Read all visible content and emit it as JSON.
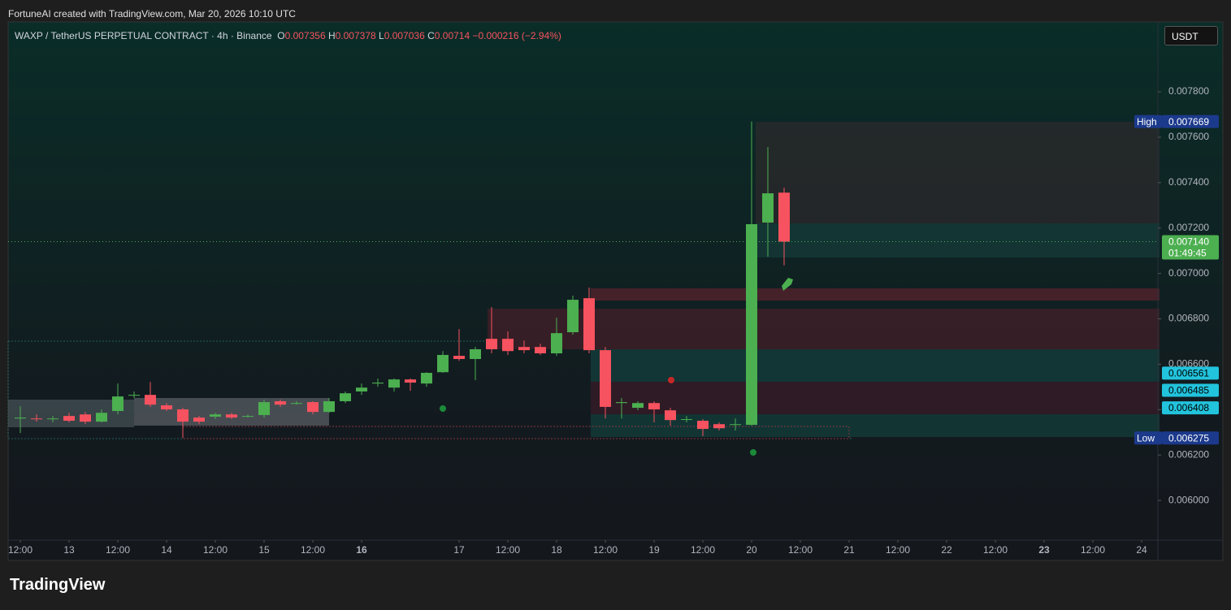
{
  "watermark": "FortuneAI created with TradingView.com, Mar 20, 2026 10:10 UTC",
  "logo": "TradingView",
  "currency_button": "USDT",
  "chart_data": {
    "type": "candlestick",
    "symbol": "WAXP / TetherUS PERPETUAL CONTRACT · 4h · Binance",
    "change": "−0.000216 (−2.94%)",
    "up_color": "#4caf50",
    "down_color": "#f7525f",
    "open": [
      0.006361,
      0.006361,
      0.006358,
      0.006372,
      0.006379,
      0.006347,
      0.006394,
      0.006462,
      0.006465,
      0.006419,
      0.006401,
      0.006365,
      0.006369,
      0.006379,
      0.006372,
      0.006376,
      0.006437,
      0.006429,
      0.006433,
      0.00639,
      0.006437,
      0.00648,
      0.006515,
      0.006497,
      0.006533,
      0.006515,
      0.006565,
      0.006637,
      0.006623,
      0.006712,
      0.006712,
      0.006676,
      0.006676,
      0.006648,
      0.006741,
      0.006891,
      0.006662,
      0.006429,
      0.006408,
      0.006429,
      0.006397,
      0.006358,
      0.006351,
      0.006336,
      0.006333,
      0.006333,
      0.007224,
      0.007356
    ],
    "high": [
      0.006415,
      0.006379,
      0.006372,
      0.006386,
      0.00639,
      0.006401,
      0.006515,
      0.00648,
      0.006522,
      0.006429,
      0.006408,
      0.006372,
      0.006386,
      0.006386,
      0.006379,
      0.006444,
      0.006444,
      0.006437,
      0.006437,
      0.006451,
      0.00648,
      0.006515,
      0.006537,
      0.006537,
      0.006537,
      0.006565,
      0.006658,
      0.006755,
      0.006676,
      0.006852,
      0.006744,
      0.006705,
      0.00669,
      0.006805,
      0.006902,
      0.006938,
      0.006676,
      0.006451,
      0.006437,
      0.006437,
      0.006408,
      0.006372,
      0.006358,
      0.006344,
      0.006361,
      0.007669,
      0.007557,
      0.007378
    ],
    "low": [
      0.006297,
      0.006347,
      0.006344,
      0.006344,
      0.006336,
      0.006344,
      0.006379,
      0.006451,
      0.006412,
      0.006394,
      0.006275,
      0.006336,
      0.006358,
      0.006358,
      0.006365,
      0.006365,
      0.006412,
      0.006422,
      0.006379,
      0.006386,
      0.006429,
      0.006465,
      0.006501,
      0.00648,
      0.006483,
      0.006501,
      0.006562,
      0.006615,
      0.00653,
      0.006648,
      0.006641,
      0.006648,
      0.006641,
      0.006637,
      0.00673,
      0.006648,
      0.006361,
      0.006361,
      0.006397,
      0.006344,
      0.006329,
      0.006344,
      0.006283,
      0.006308,
      0.006308,
      0.006329,
      0.007074,
      0.007036
    ],
    "close": [
      0.006365,
      0.006358,
      0.006361,
      0.006351,
      0.006347,
      0.006386,
      0.006458,
      0.006465,
      0.006422,
      0.006401,
      0.006347,
      0.006347,
      0.006379,
      0.006365,
      0.006372,
      0.006433,
      0.006422,
      0.006429,
      0.00639,
      0.006437,
      0.006472,
      0.006497,
      0.006519,
      0.006533,
      0.006519,
      0.006562,
      0.006641,
      0.006623,
      0.006666,
      0.006666,
      0.006658,
      0.006662,
      0.006648,
      0.006737,
      0.006884,
      0.006662,
      0.006412,
      0.006433,
      0.006429,
      0.006401,
      0.006354,
      0.006358,
      0.006315,
      0.006318,
      0.006336,
      0.007217,
      0.007353,
      0.00714
    ],
    "xlim": [
      -0.75,
      70
    ],
    "xticks": [
      {
        "value": 0,
        "label": "12:00"
      },
      {
        "value": 3,
        "label": "13"
      },
      {
        "value": 6,
        "label": "12:00"
      },
      {
        "value": 9,
        "label": "14"
      },
      {
        "value": 12,
        "label": "12:00"
      },
      {
        "value": 15,
        "label": "15"
      },
      {
        "value": 18,
        "label": "12:00"
      },
      {
        "value": 21,
        "label": "16",
        "bold": true
      },
      {
        "value": 27,
        "label": "17"
      },
      {
        "value": 30,
        "label": "12:00"
      },
      {
        "value": 33,
        "label": "18"
      },
      {
        "value": 36,
        "label": "12:00"
      },
      {
        "value": 39,
        "label": "19"
      },
      {
        "value": 42,
        "label": "12:00"
      },
      {
        "value": 45,
        "label": "20"
      },
      {
        "value": 48,
        "label": "12:00"
      },
      {
        "value": 51,
        "label": "21"
      },
      {
        "value": 54,
        "label": "12:00"
      },
      {
        "value": 57,
        "label": "22"
      },
      {
        "value": 60,
        "label": "12:00"
      },
      {
        "value": 63,
        "label": "23",
        "bold": true
      },
      {
        "value": 66,
        "label": "12:00"
      },
      {
        "value": 69,
        "label": "24"
      }
    ],
    "ylim": [
      0.005825,
      0.008108
    ],
    "yticks": [
      {
        "value": 0.006,
        "label": "0.006000"
      },
      {
        "value": 0.0062,
        "label": "0.006200"
      },
      {
        "value": 0.0064,
        "label": "0.006400"
      },
      {
        "value": 0.0066,
        "label": "0.006600"
      },
      {
        "value": 0.0068,
        "label": "0.006800"
      },
      {
        "value": 0.007,
        "label": "0.007000"
      },
      {
        "value": 0.0072,
        "label": "0.007200"
      },
      {
        "value": 0.0074,
        "label": "0.007400"
      },
      {
        "value": 0.0076,
        "label": "0.007600"
      },
      {
        "value": 0.0078,
        "label": "0.007800"
      }
    ],
    "price_tags": [
      {
        "value": 0.007669,
        "label": "0.007669",
        "title": "High",
        "color": "#1c3a8c"
      },
      {
        "value": 0.00714,
        "label": "0.007140",
        "sub": "01:49:45",
        "color": "#4caf50"
      },
      {
        "value": 0.006561,
        "label": "0.006561",
        "color": "#22c3dc"
      },
      {
        "value": 0.006485,
        "label": "0.006485",
        "color": "#22c3dc"
      },
      {
        "value": 0.006408,
        "label": "0.006408",
        "color": "#22c3dc"
      },
      {
        "value": 0.006275,
        "label": "0.006275",
        "title": "Low",
        "color": "#1c3a8c"
      }
    ]
  }
}
